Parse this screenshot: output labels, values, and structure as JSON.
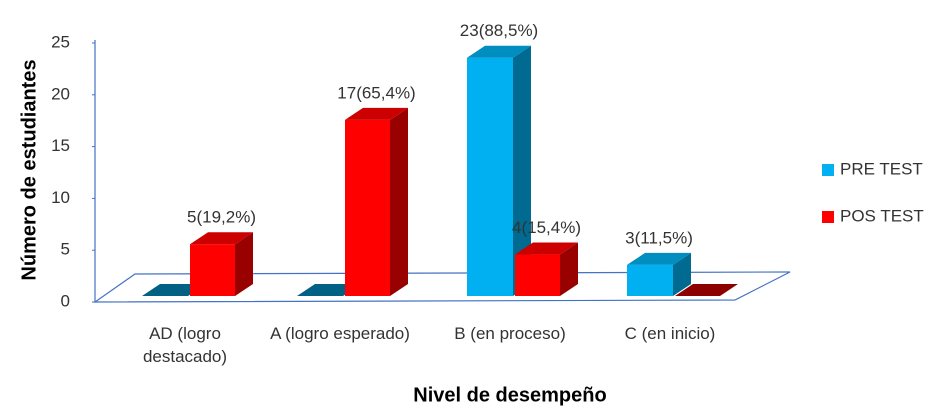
{
  "chart_data": {
    "type": "bar3d",
    "categories": [
      "AD (logro destacado)",
      "A (logro esperado)",
      "B (en proceso)",
      "C (en inicio)"
    ],
    "series": [
      {
        "name": "PRE TEST",
        "color": "#00b0f0",
        "values": [
          0,
          0,
          23,
          3
        ],
        "value_labels": [
          null,
          null,
          "23(88,5%)",
          "3(11,5%)"
        ]
      },
      {
        "name": "POS TEST",
        "color": "#ff0000",
        "values": [
          5,
          17,
          4,
          0
        ],
        "value_labels": [
          "5(19,2%)",
          "17(65,4%)",
          "4(15,4%)",
          null
        ]
      }
    ],
    "ylim": [
      0,
      25
    ],
    "yticks": [
      0,
      5,
      10,
      15,
      20,
      25
    ],
    "y_label": "Número de estudiantes",
    "x_label": "Nivel de desempeño",
    "legend": "right"
  }
}
